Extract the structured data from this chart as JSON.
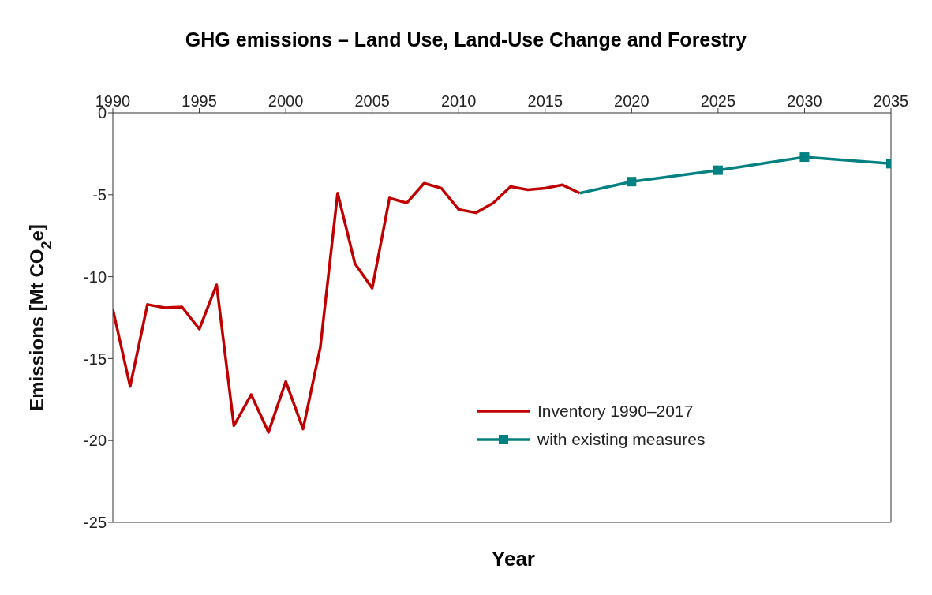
{
  "chart_data": {
    "type": "line",
    "title": "GHG emissions – Land Use, Land-Use Change and Forestry",
    "xlabel": "Year",
    "ylabel": "Emissions [Mt CO$_{2}$e]",
    "xlim": [
      1990,
      2035
    ],
    "xticks": [
      1990,
      1995,
      2000,
      2005,
      2010,
      2015,
      2020,
      2025,
      2030,
      2035
    ],
    "ylim": [
      -25,
      0
    ],
    "yticks": [
      -25,
      -20,
      -15,
      -10,
      -5,
      0
    ],
    "legend": "bottom right",
    "line_style": "solid",
    "series": [
      {
        "name": "Inventory 1990–2017",
        "color": "#c00000",
        "marker": "none",
        "x": [
          1990,
          1991,
          1992,
          1993,
          1994,
          1995,
          1996,
          1997,
          1998,
          1999,
          2000,
          2001,
          2002,
          2003,
          2004,
          2005,
          2006,
          2007,
          2008,
          2009,
          2010,
          2011,
          2012,
          2013,
          2014,
          2015,
          2016,
          2017
        ],
        "values": [
          -12.0,
          -16.7,
          -11.7,
          -11.9,
          -11.85,
          -13.2,
          -10.5,
          -19.1,
          -17.2,
          -19.5,
          -16.4,
          -19.3,
          -14.3,
          -4.9,
          -9.2,
          -10.7,
          -5.2,
          -5.5,
          -4.3,
          -4.6,
          -5.9,
          -6.1,
          -5.5,
          -4.5,
          -4.7,
          -4.6,
          -4.4,
          -4.9
        ]
      },
      {
        "name": "with existing measures",
        "color": "#008080",
        "marker": "square",
        "x": [
          2017,
          2020,
          2025,
          2030,
          2035
        ],
        "values": [
          -4.9,
          -4.2,
          -3.5,
          -2.7,
          -3.1
        ]
      }
    ]
  }
}
